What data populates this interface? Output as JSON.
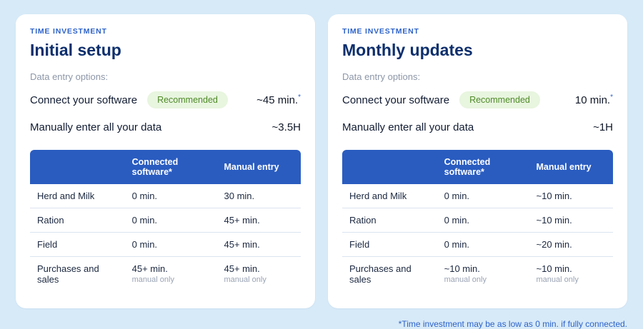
{
  "colors": {
    "background": "#d7eaf8",
    "card": "#ffffff",
    "accent_blue": "#2e63c9",
    "title_navy": "#0d2f6d",
    "table_header_blue": "#2a5cc0",
    "badge_bg": "#e8f5df",
    "badge_text": "#4e8a28",
    "muted_gray": "#8d97a8"
  },
  "footnote": "*Time investment may be as low as 0 min. if fully connected.",
  "cards": [
    {
      "eyebrow": "TIME INVESTMENT",
      "title": "Initial setup",
      "options_label": "Data entry options:",
      "options": [
        {
          "label": "Connect your software",
          "badge": "Recommended",
          "time": "~45 min.",
          "asterisk": "*"
        },
        {
          "label": "Manually enter all your data",
          "time": "~3.5H"
        }
      ],
      "table": {
        "headers": [
          "",
          "Connected software*",
          "Manual entry"
        ],
        "rows": [
          {
            "label": "Herd and Milk",
            "col1": "0 min.",
            "col2": "30 min."
          },
          {
            "label": "Ration",
            "col1": "0 min.",
            "col2": "45+ min."
          },
          {
            "label": "Field",
            "col1": "0 min.",
            "col2": "45+ min."
          },
          {
            "label": "Purchases and sales",
            "col1": "45+ min.",
            "col1_sub": "manual only",
            "col2": "45+ min.",
            "col2_sub": "manual only"
          }
        ]
      }
    },
    {
      "eyebrow": "TIME INVESTMENT",
      "title": "Monthly updates",
      "options_label": "Data entry options:",
      "options": [
        {
          "label": "Connect your software",
          "badge": "Recommended",
          "time": "10 min.",
          "asterisk": "*"
        },
        {
          "label": "Manually enter all your data",
          "time": "~1H"
        }
      ],
      "table": {
        "headers": [
          "",
          "Connected software*",
          "Manual entry"
        ],
        "rows": [
          {
            "label": "Herd and Milk",
            "col1": "0 min.",
            "col2": "~10 min."
          },
          {
            "label": "Ration",
            "col1": "0 min.",
            "col2": "~10 min."
          },
          {
            "label": "Field",
            "col1": "0 min.",
            "col2": "~20 min."
          },
          {
            "label": "Purchases and sales",
            "col1": "~10 min.",
            "col1_sub": "manual only",
            "col2": "~10 min.",
            "col2_sub": "manual only"
          }
        ]
      }
    }
  ]
}
